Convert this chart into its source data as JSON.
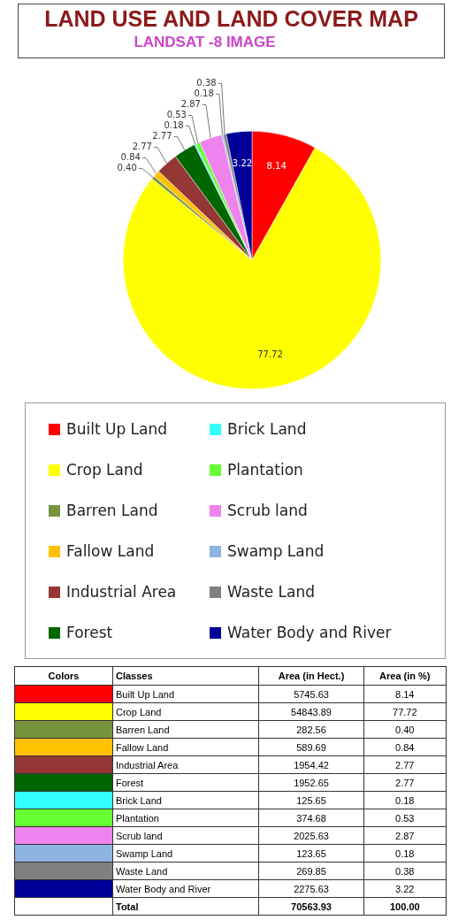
{
  "chart_data": {
    "type": "pie",
    "title": "LAND USE AND LAND COVER MAP",
    "subtitle": "LANDSAT -8 IMAGE",
    "categories": [
      "Built Up Land",
      "Crop Land",
      "Barren Land",
      "Fallow Land",
      "Industrial Area",
      "Forest",
      "Brick Land",
      "Plantation",
      "Scrub land",
      "Swamp Land",
      "Waste Land",
      "Water Body and River"
    ],
    "values": [
      8.14,
      77.72,
      0.4,
      0.84,
      2.77,
      2.77,
      0.18,
      0.53,
      2.87,
      0.18,
      0.38,
      3.22
    ],
    "value_labels": [
      "8.14",
      "77.72",
      "0.40",
      "0.84",
      "2.77",
      "2.77",
      "0.18",
      "0.53",
      "2.87",
      "0.18",
      "0.38",
      "3.22"
    ],
    "colors": [
      "#ff0000",
      "#ffff00",
      "#77933c",
      "#ffc000",
      "#953735",
      "#006600",
      "#33ffff",
      "#66ff33",
      "#ee82ee",
      "#8eb4e3",
      "#808080",
      "#000099"
    ],
    "legend": "bottom",
    "annotations": [
      "Colors",
      "Classes",
      "Area (in Hect.)",
      "Area (in %)",
      "5745.63",
      "54843.89",
      "282.56",
      "589.69",
      "1954.42",
      "1952.65",
      "125.65",
      "374.68",
      "2025.63",
      "123.65",
      "269.85",
      "2275.63",
      "Total",
      "70563.93",
      "100.00"
    ]
  }
}
